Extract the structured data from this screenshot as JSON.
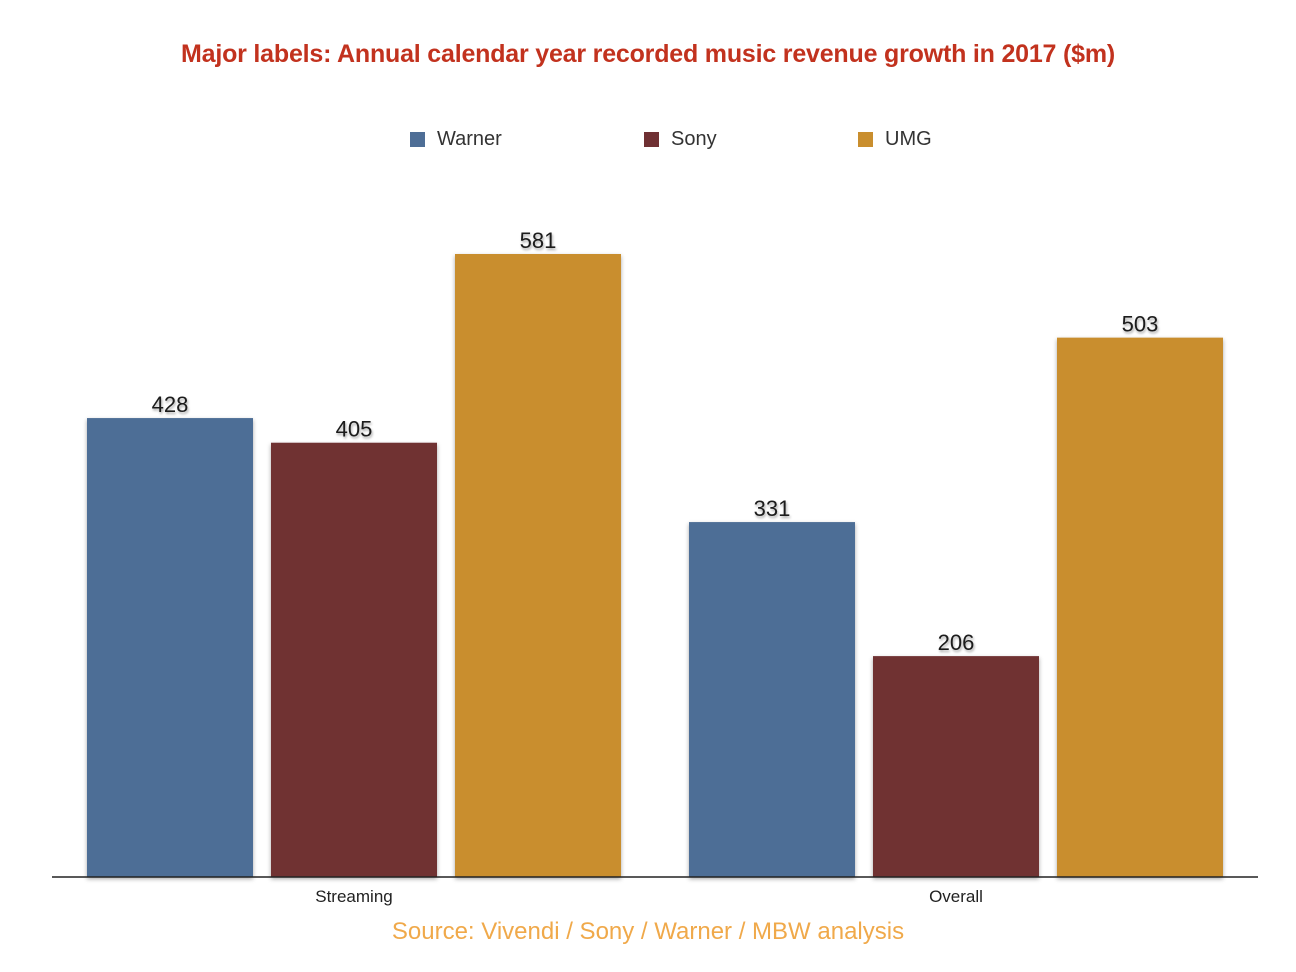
{
  "chart_data": {
    "type": "bar",
    "title": "Major labels: Annual calendar year recorded music revenue growth in 2017 ($m)",
    "xlabel": "",
    "ylabel": "",
    "categories": [
      "Streaming",
      "Overall"
    ],
    "series": [
      {
        "name": "Warner",
        "color": "#4e6e96",
        "values": [
          428,
          331
        ]
      },
      {
        "name": "Sony",
        "color": "#6f3033",
        "values": [
          405,
          206
        ]
      },
      {
        "name": "UMG",
        "color": "#c98e2e",
        "values": [
          581,
          503
        ]
      }
    ],
    "ylim": [
      0,
      581
    ],
    "grid": false,
    "legend": "top-center",
    "data_labels": true,
    "source": "Source: Vivendi / Sony / Warner / MBW analysis"
  }
}
